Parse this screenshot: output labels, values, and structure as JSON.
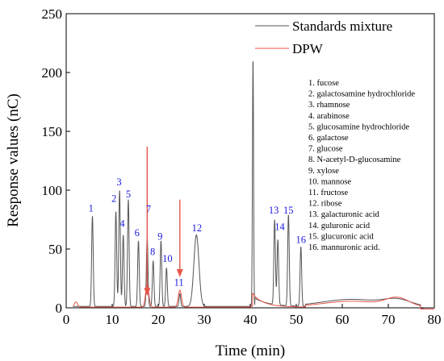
{
  "chart_data": {
    "type": "line",
    "title": "",
    "xlabel": "Time (min)",
    "ylabel": "Response values (nC)",
    "xlim": [
      0,
      80
    ],
    "ylim": [
      0,
      250
    ],
    "xticks": [
      0,
      10,
      20,
      30,
      40,
      50,
      60,
      70,
      80
    ],
    "yticks": [
      0,
      50,
      100,
      150,
      200,
      250
    ],
    "grid": false,
    "legend_position": "top-right",
    "series": [
      {
        "name": "Standards mixture",
        "color": "#555555",
        "peaks": [
          {
            "label": "1",
            "x": 5.7,
            "y": 78
          },
          {
            "label": "2",
            "x": 10.8,
            "y": 82
          },
          {
            "label": "3",
            "x": 11.6,
            "y": 100
          },
          {
            "label": "4",
            "x": 12.4,
            "y": 62
          },
          {
            "label": "5",
            "x": 13.5,
            "y": 92
          },
          {
            "label": "6",
            "x": 15.7,
            "y": 57
          },
          {
            "label": "7",
            "x": 17.6,
            "y": 60
          },
          {
            "label": "8",
            "x": 18.9,
            "y": 40
          },
          {
            "label": "9",
            "x": 20.6,
            "y": 57
          },
          {
            "label": "10",
            "x": 21.8,
            "y": 34
          },
          {
            "label": "11",
            "x": 24.7,
            "y": 12
          },
          {
            "label": "12",
            "x": 28.3,
            "y": 62
          },
          {
            "label": "",
            "x": 40.6,
            "y": 212
          },
          {
            "label": "13",
            "x": 45.3,
            "y": 75
          },
          {
            "label": "14",
            "x": 46.0,
            "y": 58
          },
          {
            "label": "15",
            "x": 48.3,
            "y": 79
          },
          {
            "label": "16",
            "x": 51.0,
            "y": 52
          }
        ]
      },
      {
        "name": "DPW",
        "color": "#e8564a",
        "peaks": [
          {
            "x": 2.1,
            "y": 5
          },
          {
            "x": 17.6,
            "y": 20
          },
          {
            "x": 24.7,
            "y": 15
          },
          {
            "x": 40.6,
            "y": 12
          }
        ]
      }
    ],
    "peak_labels": [
      {
        "text": "1",
        "x": 5.4,
        "y": 82
      },
      {
        "text": "2",
        "x": 10.4,
        "y": 90
      },
      {
        "text": "3",
        "x": 11.5,
        "y": 104
      },
      {
        "text": "4",
        "x": 12.2,
        "y": 69
      },
      {
        "text": "5",
        "x": 13.5,
        "y": 94
      },
      {
        "text": "6",
        "x": 15.4,
        "y": 61
      },
      {
        "text": "7",
        "x": 17.9,
        "y": 81
      },
      {
        "text": "8",
        "x": 18.8,
        "y": 45
      },
      {
        "text": "9",
        "x": 20.4,
        "y": 58
      },
      {
        "text": "10",
        "x": 22.0,
        "y": 39
      },
      {
        "text": "11",
        "x": 24.5,
        "y": 19
      },
      {
        "text": "12",
        "x": 28.4,
        "y": 65
      },
      {
        "text": "13",
        "x": 45.1,
        "y": 80
      },
      {
        "text": "14",
        "x": 46.4,
        "y": 66
      },
      {
        "text": "15",
        "x": 48.3,
        "y": 80
      },
      {
        "text": "16",
        "x": 51.0,
        "y": 55
      }
    ],
    "annotations": [
      {
        "type": "arrow",
        "color": "#e8564a",
        "x": 17.6,
        "from_y": 137,
        "to_y": 10
      },
      {
        "type": "arrow",
        "color": "#e8564a",
        "x": 24.7,
        "from_y": 92,
        "to_y": 26
      }
    ],
    "reference_list": [
      "1. fucose",
      "2. galactosamine hydrochloride",
      "3. rhamnose",
      "4. arabinose",
      "5. glucosamine hydrochloride",
      "6. galactose",
      "7. glucose",
      "8. N-acetyl-D-glucosamine",
      "9. xylose",
      "10. mannose",
      "11. fructose",
      "12. ribose",
      "13. galacturonic acid",
      "14. guluronic acid",
      "15. glucuronic acid",
      "16. mannuronic acid."
    ]
  }
}
